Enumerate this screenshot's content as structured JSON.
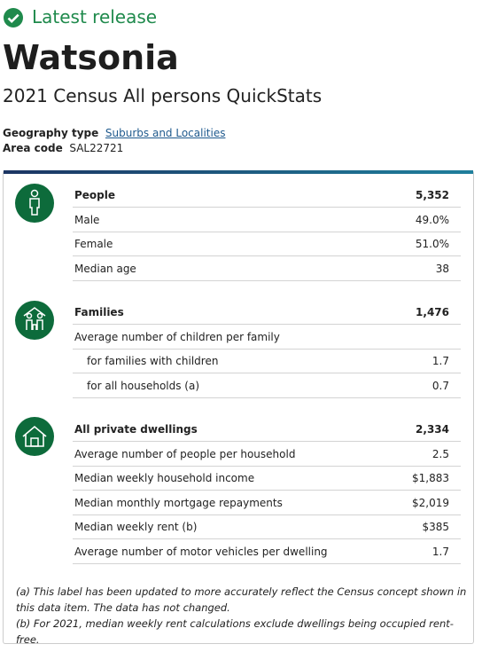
{
  "status": "Latest release",
  "title": "Watsonia",
  "subtitle": "2021 Census All persons QuickStats",
  "geography": {
    "label": "Geography type",
    "value": "Suburbs and Localities"
  },
  "area_code": {
    "label": "Area code",
    "value": "SAL22721"
  },
  "sections": [
    {
      "heading": {
        "label": "People",
        "value": "5,352"
      },
      "rows": [
        {
          "label": "Male",
          "value": "49.0%"
        },
        {
          "label": "Female",
          "value": "51.0%"
        },
        {
          "label": "Median age",
          "value": "38"
        }
      ]
    },
    {
      "heading": {
        "label": "Families",
        "value": "1,476"
      },
      "rows": [
        {
          "label": "Average number of children per family"
        },
        {
          "label": "for families with children",
          "value": "1.7"
        },
        {
          "label": "for all households (a)",
          "value": "0.7"
        }
      ]
    },
    {
      "heading": {
        "label": "All private dwellings",
        "value": "2,334"
      },
      "rows": [
        {
          "label": "Average number of people per household",
          "value": "2.5"
        },
        {
          "label": "Median weekly household income",
          "value": "$1,883"
        },
        {
          "label": "Median monthly mortgage repayments",
          "value": "$2,019"
        },
        {
          "label": "Median weekly rent (b)",
          "value": "$385"
        },
        {
          "label": "Average number of motor vehicles per dwelling",
          "value": "1.7"
        }
      ]
    }
  ],
  "footnotes": [
    "(a) This label has been updated to more accurately reflect the Census concept shown in this data item. The data has not changed.",
    "(b) For 2021, median weekly rent calculations exclude dwellings being occupied rent-free."
  ]
}
